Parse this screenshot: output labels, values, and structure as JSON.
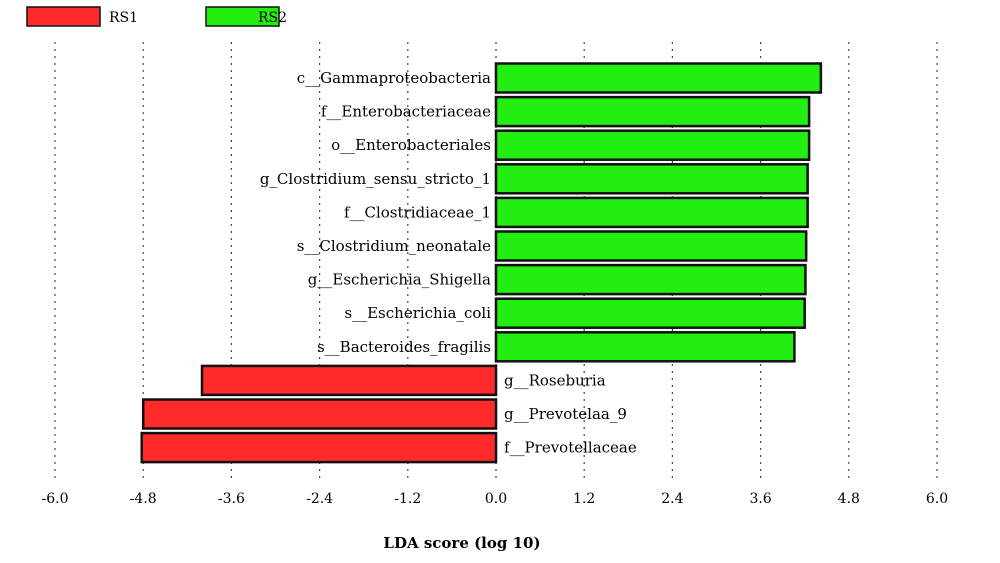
{
  "chart_data": {
    "type": "bar",
    "orientation": "horizontal",
    "xlabel": "LDA score (log 10)",
    "xlim": [
      -6.0,
      6.0
    ],
    "xticks": [
      "-6.0",
      "-4.8",
      "-3.6",
      "-2.4",
      "-1.2",
      "0.0",
      "1.2",
      "2.4",
      "3.6",
      "4.8",
      "6.0"
    ],
    "grid": "vertical dotted",
    "legend_position": "top-left",
    "series": [
      {
        "name": "RS1",
        "color": "#ff2a2a"
      },
      {
        "name": "RS2",
        "color": "#22ee11"
      }
    ],
    "categories": [
      "c__Gammaproteobacteria",
      "f__Enterobacteriaceae",
      "o__Enterobacteriales",
      "g_Clostridium_sensu_stricto_1",
      "f__Clostridiaceae_1",
      "s__Clostridium_neonatale",
      "g__Escherichia_Shigella",
      "s__Escherichia_coli",
      "s__Bacteroides_fragilis",
      "g__Roseburia",
      "g__Prevotelaa_9",
      "f__Prevotellaceae"
    ],
    "values": [
      4.42,
      4.26,
      4.26,
      4.24,
      4.24,
      4.22,
      4.21,
      4.2,
      4.06,
      -4.0,
      -4.8,
      -4.82
    ],
    "groups": [
      "RS2",
      "RS2",
      "RS2",
      "RS2",
      "RS2",
      "RS2",
      "RS2",
      "RS2",
      "RS2",
      "RS1",
      "RS1",
      "RS1"
    ]
  }
}
